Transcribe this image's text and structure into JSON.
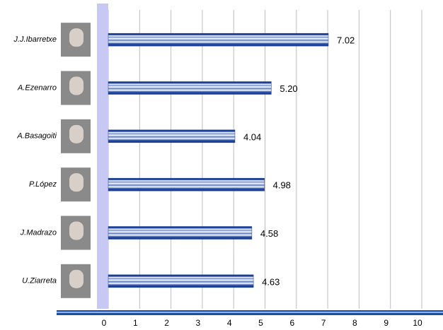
{
  "chart_data": {
    "type": "bar",
    "orientation": "horizontal",
    "categories": [
      "J.J.Ibarretxe",
      "A.Ezenarro",
      "A.Basagoiti",
      "P.López",
      "J.Madrazo",
      "U.Ziarreta"
    ],
    "values": [
      7.02,
      5.2,
      4.04,
      4.98,
      4.58,
      4.63
    ],
    "value_labels": [
      "7.02",
      "5.20",
      "4.04",
      "4.98",
      "4.58",
      "4.63"
    ],
    "color": "#1a3f95",
    "xlim": [
      0,
      10
    ],
    "xticks": [
      0,
      1,
      2,
      3,
      4,
      5,
      6,
      7,
      8,
      9,
      10
    ],
    "grid": true
  }
}
